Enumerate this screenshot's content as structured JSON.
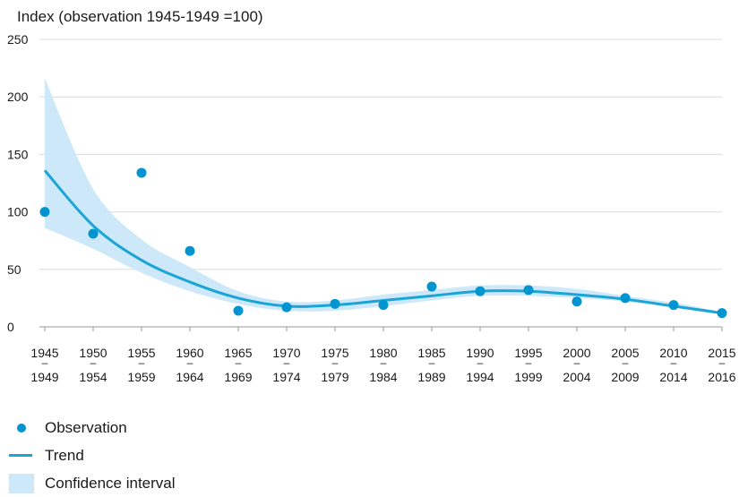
{
  "chart_data": {
    "type": "line",
    "ylabel": "Index (observation 1945-1949 =100)",
    "ylim": [
      0,
      250
    ],
    "yticks": [
      0,
      50,
      100,
      150,
      200,
      250
    ],
    "categories": [
      [
        "1945",
        "1949"
      ],
      [
        "1950",
        "1954"
      ],
      [
        "1955",
        "1959"
      ],
      [
        "1960",
        "1964"
      ],
      [
        "1965",
        "1969"
      ],
      [
        "1970",
        "1974"
      ],
      [
        "1975",
        "1979"
      ],
      [
        "1980",
        "1984"
      ],
      [
        "1985",
        "1989"
      ],
      [
        "1990",
        "1994"
      ],
      [
        "1995",
        "1999"
      ],
      [
        "2000",
        "2004"
      ],
      [
        "2005",
        "2009"
      ],
      [
        "2010",
        "2014"
      ],
      [
        "2015",
        "2016"
      ]
    ],
    "tick_separator": "–",
    "grid": true,
    "legend_position": "bottom-left",
    "series": [
      {
        "name": "Observation",
        "kind": "scatter",
        "color": "#0095d0",
        "values": [
          100,
          81,
          134,
          66,
          14,
          17,
          20,
          19,
          35,
          31,
          32,
          22,
          25,
          19,
          12
        ]
      },
      {
        "name": "Trend",
        "kind": "line",
        "color": "#1aa5d6",
        "values": [
          136,
          88,
          58,
          39,
          25,
          18,
          19,
          23,
          27,
          31,
          31,
          28,
          24,
          18,
          12
        ]
      },
      {
        "name": "Confidence interval",
        "kind": "band",
        "color": "#cde8f8",
        "lower": [
          86,
          68,
          47,
          31,
          20,
          14,
          14,
          18,
          23,
          27,
          27,
          25,
          22,
          17,
          11
        ],
        "upper": [
          216,
          120,
          76,
          52,
          31,
          22,
          23,
          28,
          32,
          36,
          36,
          33,
          27,
          21,
          13
        ]
      }
    ]
  }
}
